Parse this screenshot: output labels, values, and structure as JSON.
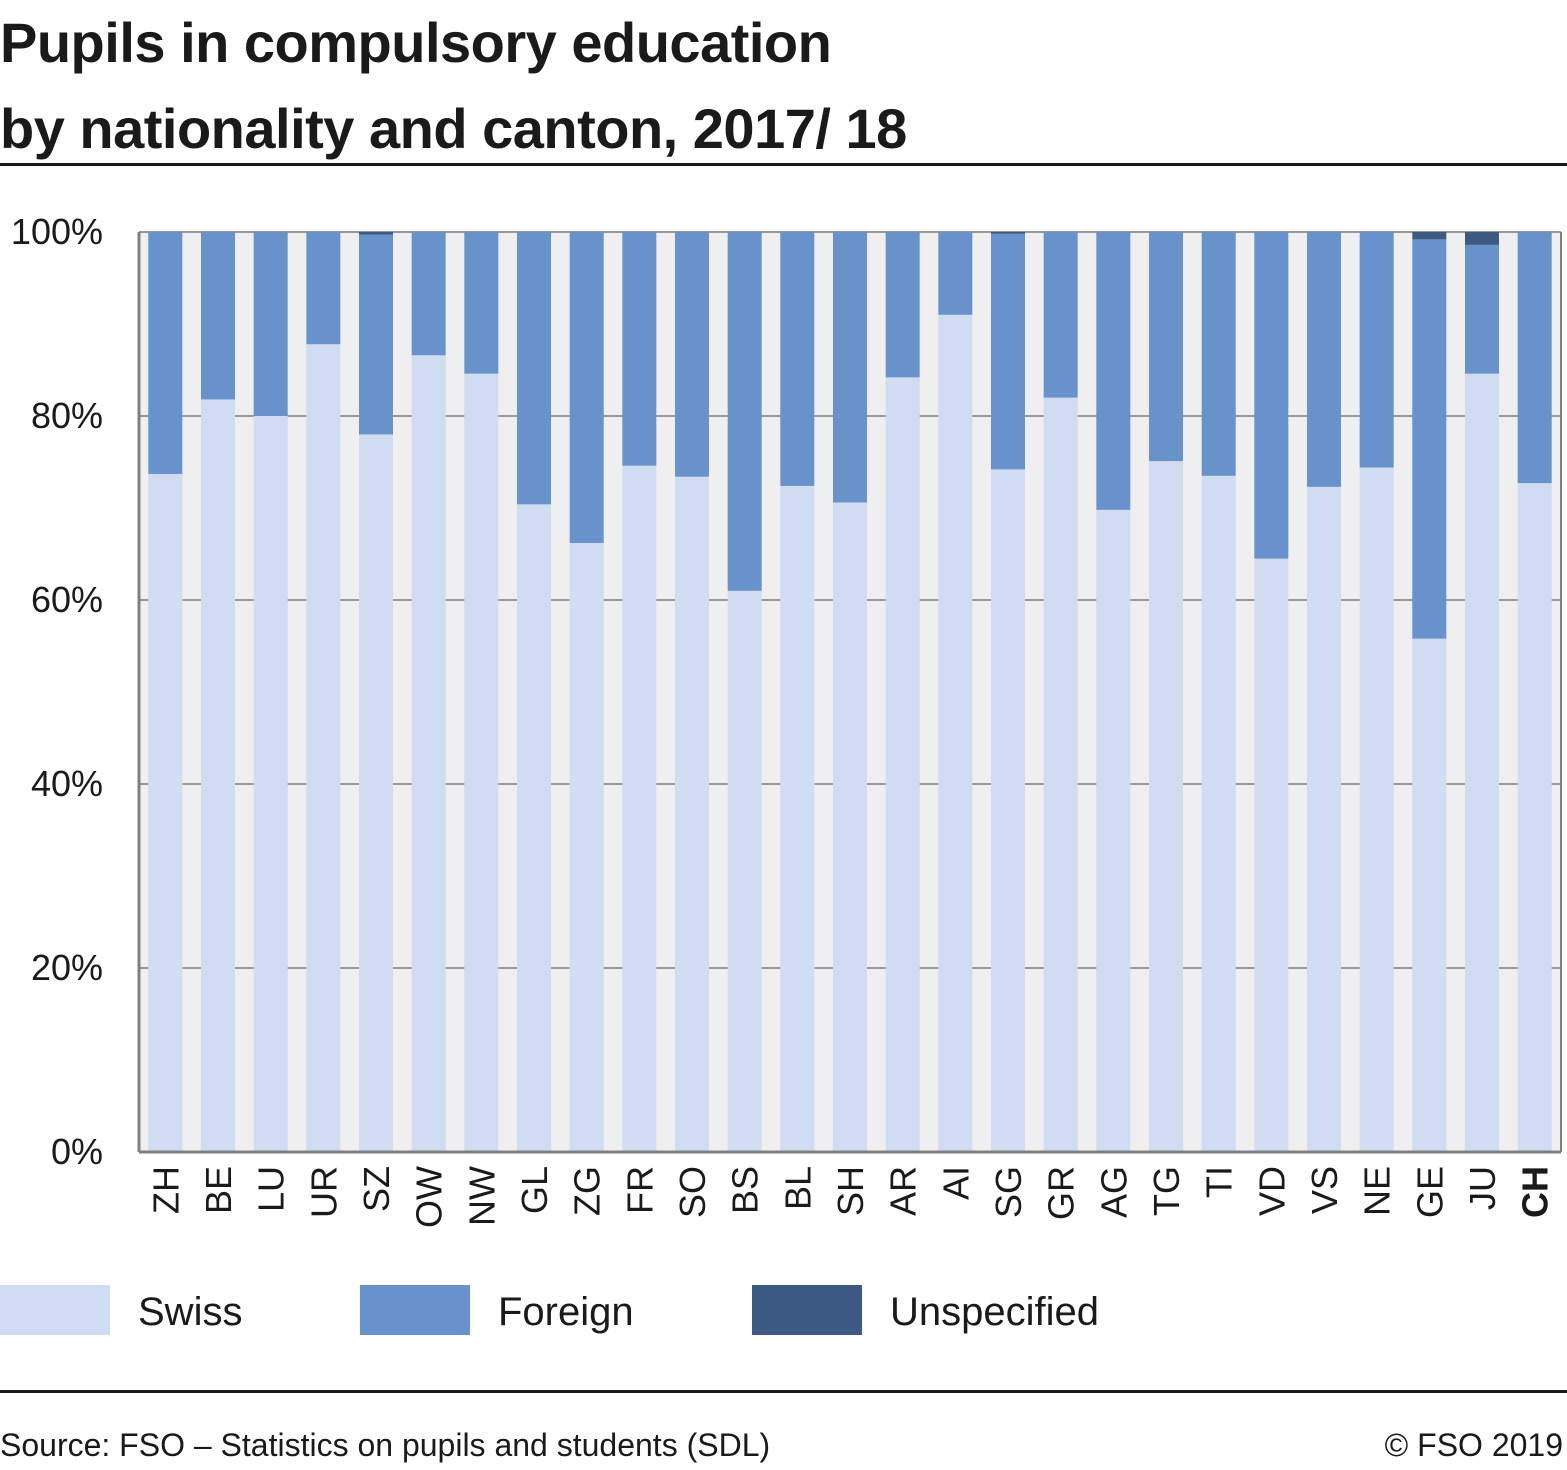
{
  "header": {
    "title_line1": "Pupils in compulsory education",
    "title_line2": "by nationality and canton, 2017/ 18"
  },
  "footer": {
    "source": "Source: FSO – Statistics on pupils and students (SDL)",
    "copyright": "© FSO 2019"
  },
  "colors": {
    "Swiss": "#cfdcf2",
    "Foreign": "#6792cb",
    "Unspecified": "#3d5a82",
    "plot_bg": "#efefef",
    "grid": "#999999",
    "axis": "#808080"
  },
  "legend": [
    {
      "label": "Swiss",
      "color": "#cfdcf2"
    },
    {
      "label": "Foreign",
      "color": "#6792cb"
    },
    {
      "label": "Unspecified",
      "color": "#3d5a82"
    }
  ],
  "chart_data": {
    "type": "bar",
    "stacked": true,
    "title": "Pupils in compulsory education by nationality and canton, 2017/ 18",
    "xlabel": "",
    "ylabel": "",
    "ylim": [
      0,
      100
    ],
    "yticks": [
      "0%",
      "20%",
      "40%",
      "60%",
      "80%",
      "100%"
    ],
    "grid": true,
    "legend_position": "bottom",
    "categories": [
      "ZH",
      "BE",
      "LU",
      "UR",
      "SZ",
      "OW",
      "NW",
      "GL",
      "ZG",
      "FR",
      "SO",
      "BS",
      "BL",
      "SH",
      "AR",
      "AI",
      "SG",
      "GR",
      "AG",
      "TG",
      "TI",
      "VD",
      "VS",
      "NE",
      "GE",
      "JU",
      "CH"
    ],
    "highlight_category": "CH",
    "series": [
      {
        "name": "Swiss",
        "values": [
          73.7,
          81.8,
          80.0,
          87.8,
          78.0,
          86.6,
          84.6,
          70.4,
          66.2,
          74.6,
          73.4,
          61.0,
          72.4,
          70.6,
          84.2,
          91.0,
          74.2,
          82.0,
          69.8,
          75.1,
          73.5,
          64.5,
          72.3,
          74.4,
          55.8,
          84.6,
          72.7
        ]
      },
      {
        "name": "Foreign",
        "values": [
          26.3,
          18.2,
          20.0,
          12.2,
          21.7,
          13.4,
          15.4,
          29.6,
          33.8,
          25.4,
          26.6,
          39.0,
          27.6,
          29.4,
          15.8,
          9.0,
          25.6,
          18.0,
          30.2,
          24.9,
          26.5,
          35.5,
          27.7,
          25.6,
          43.4,
          14.0,
          27.3
        ]
      },
      {
        "name": "Unspecified",
        "values": [
          0,
          0,
          0,
          0,
          0.3,
          0,
          0,
          0,
          0,
          0,
          0,
          0,
          0,
          0,
          0,
          0,
          0.2,
          0,
          0,
          0,
          0,
          0,
          0,
          0,
          0.8,
          1.4,
          0
        ]
      }
    ]
  }
}
